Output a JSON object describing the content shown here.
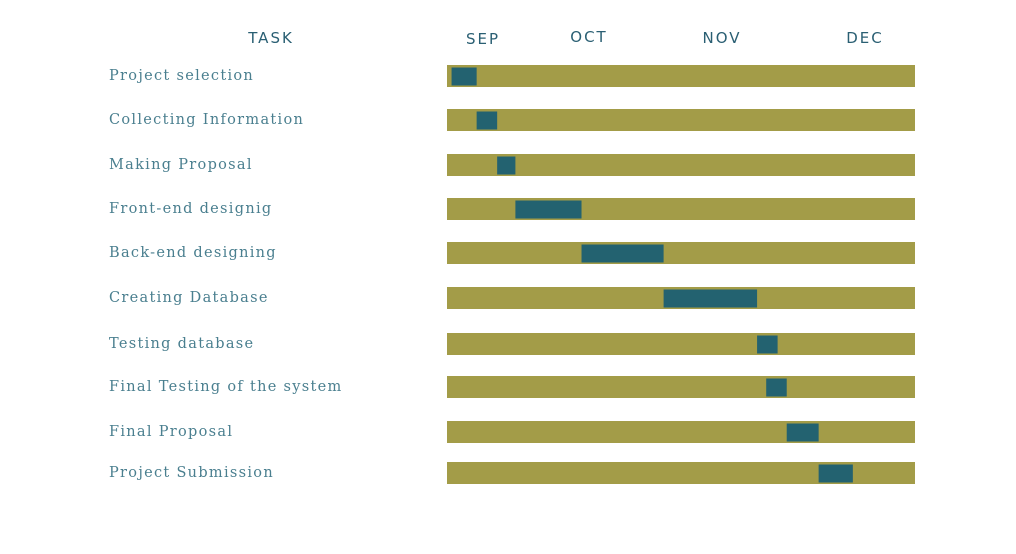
{
  "chart_data": {
    "type": "gantt",
    "headers": {
      "task": "TASK",
      "months": [
        "SEP",
        "OCT",
        "NOV",
        "DEC"
      ]
    },
    "colors": {
      "track": "#a39c48",
      "bar": "#236270",
      "header_text": "#2a5f73",
      "label_text": "#4a7f8f"
    },
    "x_unit": "week",
    "x_range": [
      0,
      16
    ],
    "tasks": [
      {
        "name": "Project selection",
        "start": 0.2,
        "end": 1.3
      },
      {
        "name": "Collecting Information",
        "start": 1.3,
        "end": 2.2
      },
      {
        "name": "Making Proposal",
        "start": 2.2,
        "end": 3.0
      },
      {
        "name": "Front-end designig",
        "start": 3.0,
        "end": 5.9
      },
      {
        "name": "Back-end designing",
        "start": 5.9,
        "end": 9.5
      },
      {
        "name": "Creating Database",
        "start": 9.5,
        "end": 13.6
      },
      {
        "name": "Testing database",
        "start": 13.6,
        "end": 14.5
      },
      {
        "name": "Final Testing of the system",
        "start": 14.0,
        "end": 14.9
      },
      {
        "name": "Final Proposal",
        "start": 14.9,
        "end": 16.3
      },
      {
        "name": "Project Submission",
        "start": 16.3,
        "end": 17.8
      }
    ]
  }
}
